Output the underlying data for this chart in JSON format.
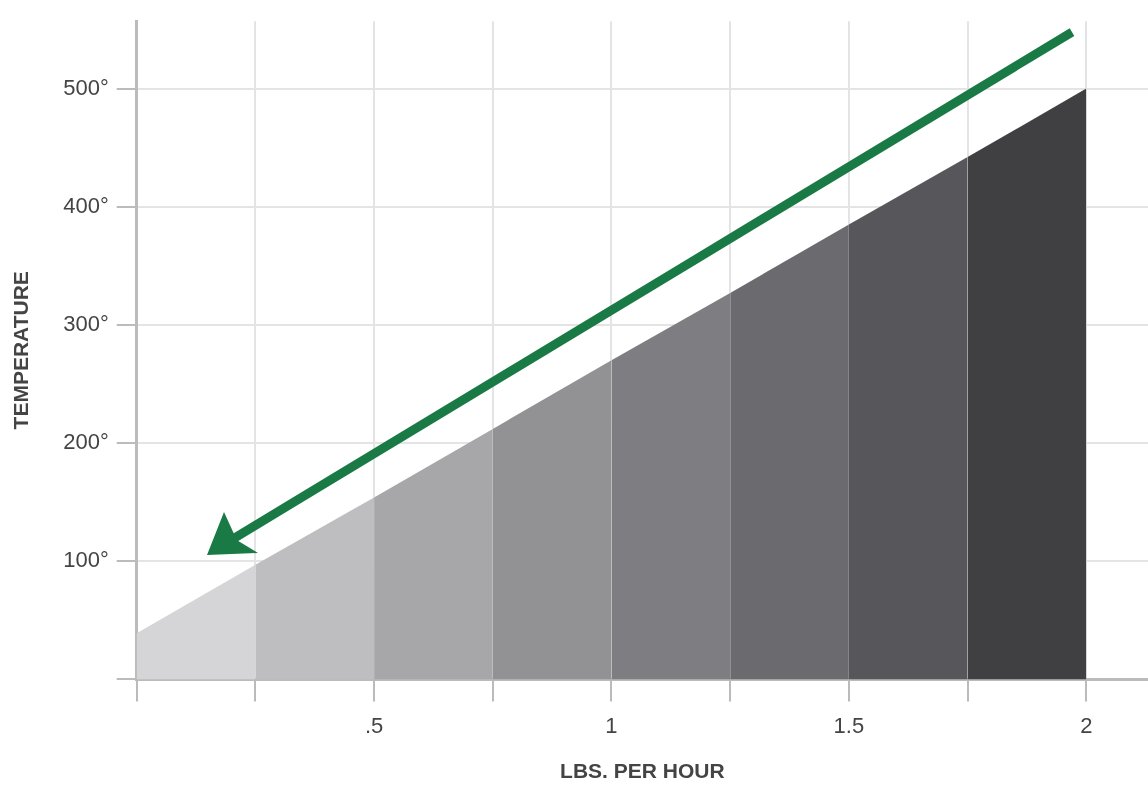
{
  "chart_data": {
    "type": "area",
    "xlabel": "LBS. PER HOUR",
    "ylabel": "TEMPERATURE",
    "xlim": [
      0,
      2.13
    ],
    "ylim": [
      0,
      557
    ],
    "xticks": [
      {
        "value": 0,
        "label": null
      },
      {
        "value": 0.25,
        "label": null
      },
      {
        "value": 0.5,
        "label": ".5"
      },
      {
        "value": 0.75,
        "label": null
      },
      1,
      {
        "value": 1.25,
        "label": null
      },
      1.5,
      {
        "value": 1.75,
        "label": null
      },
      2
    ],
    "yticks": [
      {
        "value": 0,
        "label": null
      },
      {
        "value": 100,
        "label": "100°"
      },
      {
        "value": 200,
        "label": "200°"
      },
      {
        "value": 300,
        "label": "300°"
      },
      {
        "value": 400,
        "label": "400°"
      },
      {
        "value": 500,
        "label": "500°"
      }
    ],
    "grid": true,
    "series": [
      {
        "color": "#d5d5d7",
        "x": [
          0,
          0.25
        ],
        "values": [
          39,
          97
        ]
      },
      {
        "color": "#bebec0",
        "x": [
          0.25,
          0.5
        ],
        "values": [
          97,
          154
        ]
      },
      {
        "color": "#a7a7a9",
        "x": [
          0.5,
          0.75
        ],
        "values": [
          154,
          212
        ]
      },
      {
        "color": "#929295",
        "x": [
          0.75,
          1
        ],
        "values": [
          212,
          270
        ]
      },
      {
        "color": "#7e7d81",
        "x": [
          1,
          1.25
        ],
        "values": [
          270,
          327
        ]
      },
      {
        "color": "#6b6a6e",
        "x": [
          1.25,
          1.5
        ],
        "values": [
          327,
          385
        ]
      },
      {
        "color": "#57565a",
        "x": [
          1.5,
          1.75
        ],
        "values": [
          385,
          442
        ]
      },
      {
        "color": "#403f42",
        "x": [
          1.75,
          2
        ],
        "values": [
          442,
          500
        ]
      }
    ]
  }
}
